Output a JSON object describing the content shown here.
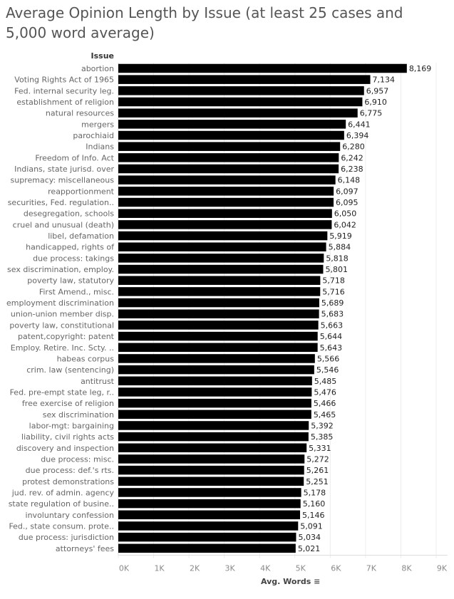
{
  "chart_data": {
    "type": "bar",
    "orientation": "horizontal",
    "title": "Average Opinion Length by Issue (at least 25 cases and 5,000 word average)",
    "ylabel": "Issue",
    "xlabel": "Avg. Words",
    "xlim": [
      0,
      9000
    ],
    "xticks": [
      0,
      1000,
      2000,
      3000,
      4000,
      5000,
      6000,
      7000,
      8000,
      9000
    ],
    "xtick_labels": [
      "0K",
      "1K",
      "2K",
      "3K",
      "4K",
      "5K",
      "6K",
      "7K",
      "8K",
      "9K"
    ],
    "grid": true,
    "bar_color": "#000000",
    "categories": [
      "abortion",
      "Voting Rights Act of 1965",
      "Fed. internal security leg.",
      "establishment of religion",
      "natural resources",
      "mergers",
      "parochiaid",
      "Indians",
      "Freedom of Info. Act",
      "Indians, state jurisd. over",
      "supremacy: miscellaneous",
      "reapportionment",
      "securities, Fed. regulation..",
      "desegregation, schools",
      "cruel and unusual (death)",
      "libel, defamation",
      "handicapped, rights of",
      "due process: takings",
      "sex discrimination, employ.",
      "poverty law, statutory",
      "First Amend., misc.",
      "employment discrimination",
      "union-union member disp.",
      "poverty law, constitutional",
      "patent,copyright: patent",
      "Employ. Retire. Inc. Scty. ..",
      "habeas corpus",
      "crim. law (sentencing)",
      "antitrust",
      "Fed. pre-empt state leg, r..",
      "free exercise of religion",
      "sex discrimination",
      "labor-mgt: bargaining",
      "liability, civil rights acts",
      "discovery and inspection",
      "due process: misc.",
      "due process: def.'s rts.",
      "protest demonstrations",
      "jud. rev. of admin. agency",
      "state regulation of busine..",
      "involuntary confession",
      "Fed., state consum. prote..",
      "due process: jurisdiction",
      "attorneys' fees"
    ],
    "values": [
      8169,
      7134,
      6957,
      6910,
      6775,
      6441,
      6394,
      6280,
      6242,
      6238,
      6148,
      6097,
      6095,
      6050,
      6042,
      5919,
      5884,
      5818,
      5801,
      5718,
      5716,
      5689,
      5683,
      5663,
      5644,
      5643,
      5566,
      5546,
      5485,
      5476,
      5466,
      5465,
      5392,
      5385,
      5331,
      5272,
      5261,
      5251,
      5178,
      5160,
      5146,
      5091,
      5034,
      5021
    ],
    "value_labels": [
      "8,169",
      "7,134",
      "6,957",
      "6,910",
      "6,775",
      "6,441",
      "6,394",
      "6,280",
      "6,242",
      "6,238",
      "6,148",
      "6,097",
      "6,095",
      "6,050",
      "6,042",
      "5,919",
      "5,884",
      "5,818",
      "5,801",
      "5,718",
      "5,716",
      "5,689",
      "5,683",
      "5,663",
      "5,644",
      "5,643",
      "5,566",
      "5,546",
      "5,485",
      "5,476",
      "5,466",
      "5,465",
      "5,392",
      "5,385",
      "5,331",
      "5,272",
      "5,261",
      "5,251",
      "5,178",
      "5,160",
      "5,146",
      "5,091",
      "5,034",
      "5,021"
    ]
  }
}
